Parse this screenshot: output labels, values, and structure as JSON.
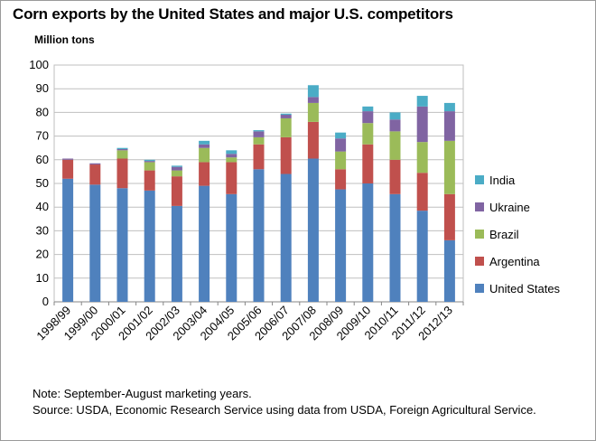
{
  "chart_data": {
    "type": "bar",
    "stacked": true,
    "title": "Corn exports by the United States and major U.S. competitors",
    "ylabel": "Million tons",
    "ylim": [
      0,
      100
    ],
    "yticks": [
      0,
      10,
      20,
      30,
      40,
      50,
      60,
      70,
      80,
      90,
      100
    ],
    "grid": true,
    "legend_position": "right",
    "categories": [
      "1998/99",
      "1999/00",
      "2000/01",
      "2001/02",
      "2002/03",
      "2003/04",
      "2004/05",
      "2005/06",
      "2006/07",
      "2007/08",
      "2008/09",
      "2009/10",
      "2010/11",
      "2011/12",
      "2012/13"
    ],
    "series": [
      {
        "name": "United States",
        "color": "#4f81bd",
        "values": [
          52,
          49.5,
          48,
          47,
          40.5,
          49,
          45.5,
          56,
          54,
          60.5,
          47.5,
          50,
          45.5,
          38.5,
          26
        ]
      },
      {
        "name": "Argentina",
        "color": "#c0504d",
        "values": [
          8,
          8.5,
          12.5,
          8.5,
          12.5,
          10,
          13.5,
          10.5,
          15.5,
          15.5,
          8.5,
          16.5,
          14.5,
          16,
          19.5
        ]
      },
      {
        "name": "Brazil",
        "color": "#9bbb59",
        "values": [
          0,
          0,
          3.5,
          3.5,
          2.5,
          6,
          2,
          3,
          8,
          8,
          7.5,
          9,
          12,
          13,
          22.5
        ]
      },
      {
        "name": "Ukraine",
        "color": "#8064a2",
        "values": [
          0.5,
          0.5,
          0.5,
          0.5,
          1.5,
          1.5,
          1.5,
          2.5,
          1.5,
          2.5,
          5.5,
          5,
          5,
          15,
          12.5
        ]
      },
      {
        "name": "India",
        "color": "#4bacc6",
        "values": [
          0,
          0,
          0.5,
          0.5,
          0.5,
          1.5,
          1.5,
          0.5,
          0.5,
          5,
          2.5,
          2,
          3,
          4.5,
          3.5
        ]
      }
    ],
    "legend_order": [
      "India",
      "Ukraine",
      "Brazil",
      "Argentina",
      "United States"
    ]
  },
  "note": "Note: September-August marketing years.",
  "source": "Source: USDA, Economic Research Service using data from USDA, Foreign Agricultural Service."
}
